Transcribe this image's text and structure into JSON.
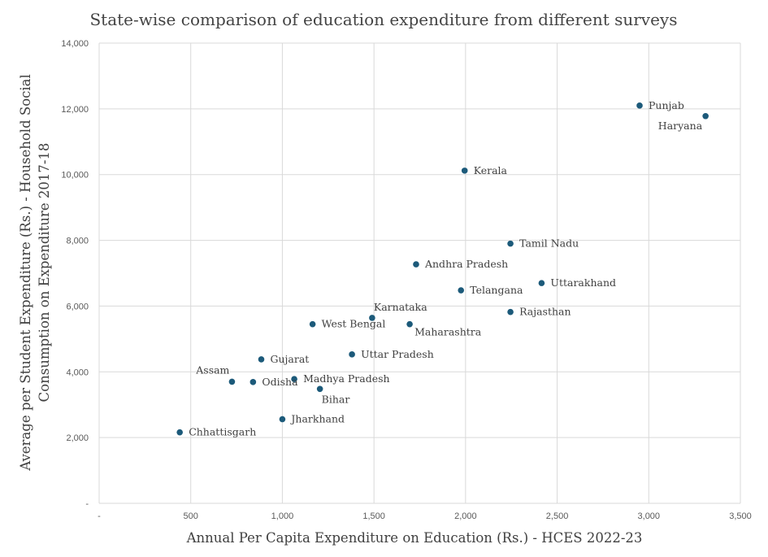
{
  "chart_data": {
    "type": "scatter",
    "title": "State-wise comparison of education expenditure from different surveys",
    "xlabel": "Annual Per Capita Expenditure on Education (Rs.) - HCES 2022-23",
    "ylabel_lines": [
      "Average per Student Expenditure (Rs.) - Household Social",
      "Consumption on Expenditure 2017-18"
    ],
    "xlim": [
      0,
      3500
    ],
    "ylim": [
      0,
      14000
    ],
    "x_ticks": [
      {
        "value": 0,
        "label": "-"
      },
      {
        "value": 500,
        "label": "500"
      },
      {
        "value": 1000,
        "label": "1,000"
      },
      {
        "value": 1500,
        "label": "1,500"
      },
      {
        "value": 2000,
        "label": "2,000"
      },
      {
        "value": 2500,
        "label": "2,500"
      },
      {
        "value": 3000,
        "label": "3,000"
      },
      {
        "value": 3500,
        "label": "3,500"
      }
    ],
    "y_ticks": [
      {
        "value": 0,
        "label": "-"
      },
      {
        "value": 2000,
        "label": "2,000"
      },
      {
        "value": 4000,
        "label": "4,000"
      },
      {
        "value": 6000,
        "label": "6,000"
      },
      {
        "value": 8000,
        "label": "8,000"
      },
      {
        "value": 10000,
        "label": "10,000"
      },
      {
        "value": 12000,
        "label": "12,000"
      },
      {
        "value": 14000,
        "label": "14,000"
      }
    ],
    "grid": true,
    "points": [
      {
        "name": "Punjab",
        "x": 2950,
        "y": 12100,
        "label_pos": "right"
      },
      {
        "name": "Haryana",
        "x": 3310,
        "y": 11780,
        "label_pos": "below-left"
      },
      {
        "name": "Kerala",
        "x": 1995,
        "y": 10120,
        "label_pos": "right"
      },
      {
        "name": "Tamil Nadu",
        "x": 2245,
        "y": 7900,
        "label_pos": "right"
      },
      {
        "name": "Andhra Pradesh",
        "x": 1730,
        "y": 7270,
        "label_pos": "right"
      },
      {
        "name": "Uttarakhand",
        "x": 2415,
        "y": 6700,
        "label_pos": "right"
      },
      {
        "name": "Telangana",
        "x": 1975,
        "y": 6480,
        "label_pos": "right"
      },
      {
        "name": "Rajasthan",
        "x": 2245,
        "y": 5820,
        "label_pos": "right"
      },
      {
        "name": "Karnataka",
        "x": 1490,
        "y": 5640,
        "label_pos": "above"
      },
      {
        "name": "West Bengal",
        "x": 1165,
        "y": 5450,
        "label_pos": "right"
      },
      {
        "name": "Maharashtra",
        "x": 1695,
        "y": 5450,
        "label_pos": "below-right"
      },
      {
        "name": "Uttar Pradesh",
        "x": 1380,
        "y": 4530,
        "label_pos": "right"
      },
      {
        "name": "Gujarat",
        "x": 885,
        "y": 4380,
        "label_pos": "right"
      },
      {
        "name": "Madhya Pradesh",
        "x": 1065,
        "y": 3780,
        "label_pos": "right"
      },
      {
        "name": "Assam",
        "x": 725,
        "y": 3700,
        "label_pos": "above-left"
      },
      {
        "name": "Odisha",
        "x": 840,
        "y": 3690,
        "label_pos": "right"
      },
      {
        "name": "Bihar",
        "x": 1205,
        "y": 3480,
        "label_pos": "below"
      },
      {
        "name": "Jharkhand",
        "x": 1000,
        "y": 2560,
        "label_pos": "right"
      },
      {
        "name": "Chhattisgarh",
        "x": 440,
        "y": 2160,
        "label_pos": "right"
      }
    ]
  }
}
